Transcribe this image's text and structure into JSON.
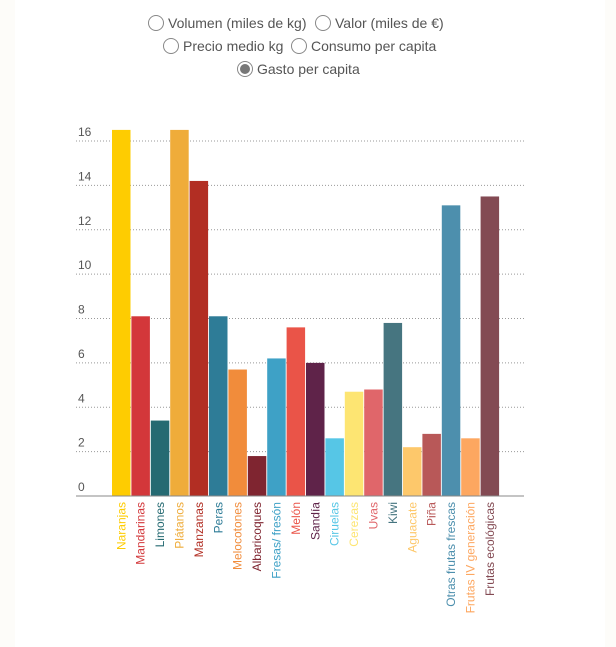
{
  "options": [
    {
      "label": "Volumen (miles de kg)",
      "selected": false
    },
    {
      "label": "Valor (miles de €)",
      "selected": false
    },
    {
      "label": "Precio medio kg",
      "selected": false
    },
    {
      "label": "Consumo per capita",
      "selected": false
    },
    {
      "label": "Gasto per capita",
      "selected": true
    }
  ],
  "chart_data": {
    "type": "bar",
    "title": "",
    "xlabel": "",
    "ylabel": "",
    "ylim": [
      0,
      16
    ],
    "yticks": [
      0,
      2,
      4,
      6,
      8,
      10,
      12,
      14,
      16
    ],
    "grid": true,
    "categories": [
      "Naranjas",
      "Mandarinas",
      "Limones",
      "Plátanos",
      "Manzanas",
      "Peras",
      "Melocotones",
      "Albaricoques",
      "Fresas/ fresón",
      "Melón",
      "Sandía",
      "Ciruelas",
      "Cerezas",
      "Uvas",
      "Kiwi",
      "Aguacate",
      "Piña",
      "Otras frutas frescas",
      "Frutas IV generación",
      "Frutas ecológicas"
    ],
    "values": [
      16.5,
      8.1,
      3.4,
      16.5,
      14.2,
      8.1,
      5.7,
      1.8,
      6.2,
      7.6,
      6.0,
      2.6,
      4.7,
      4.8,
      7.8,
      2.2,
      2.8,
      13.1,
      2.6,
      13.5
    ],
    "colors": [
      "#fecc01",
      "#d3373a",
      "#256a72",
      "#efac3a",
      "#b22e23",
      "#2e7c97",
      "#f18c3b",
      "#7f2530",
      "#3ea1c6",
      "#ea5448",
      "#5f2349",
      "#56c6e6",
      "#fde572",
      "#e0666a",
      "#467580",
      "#fdc86b",
      "#b85858",
      "#4d8fad",
      "#fda760",
      "#834a53"
    ]
  }
}
